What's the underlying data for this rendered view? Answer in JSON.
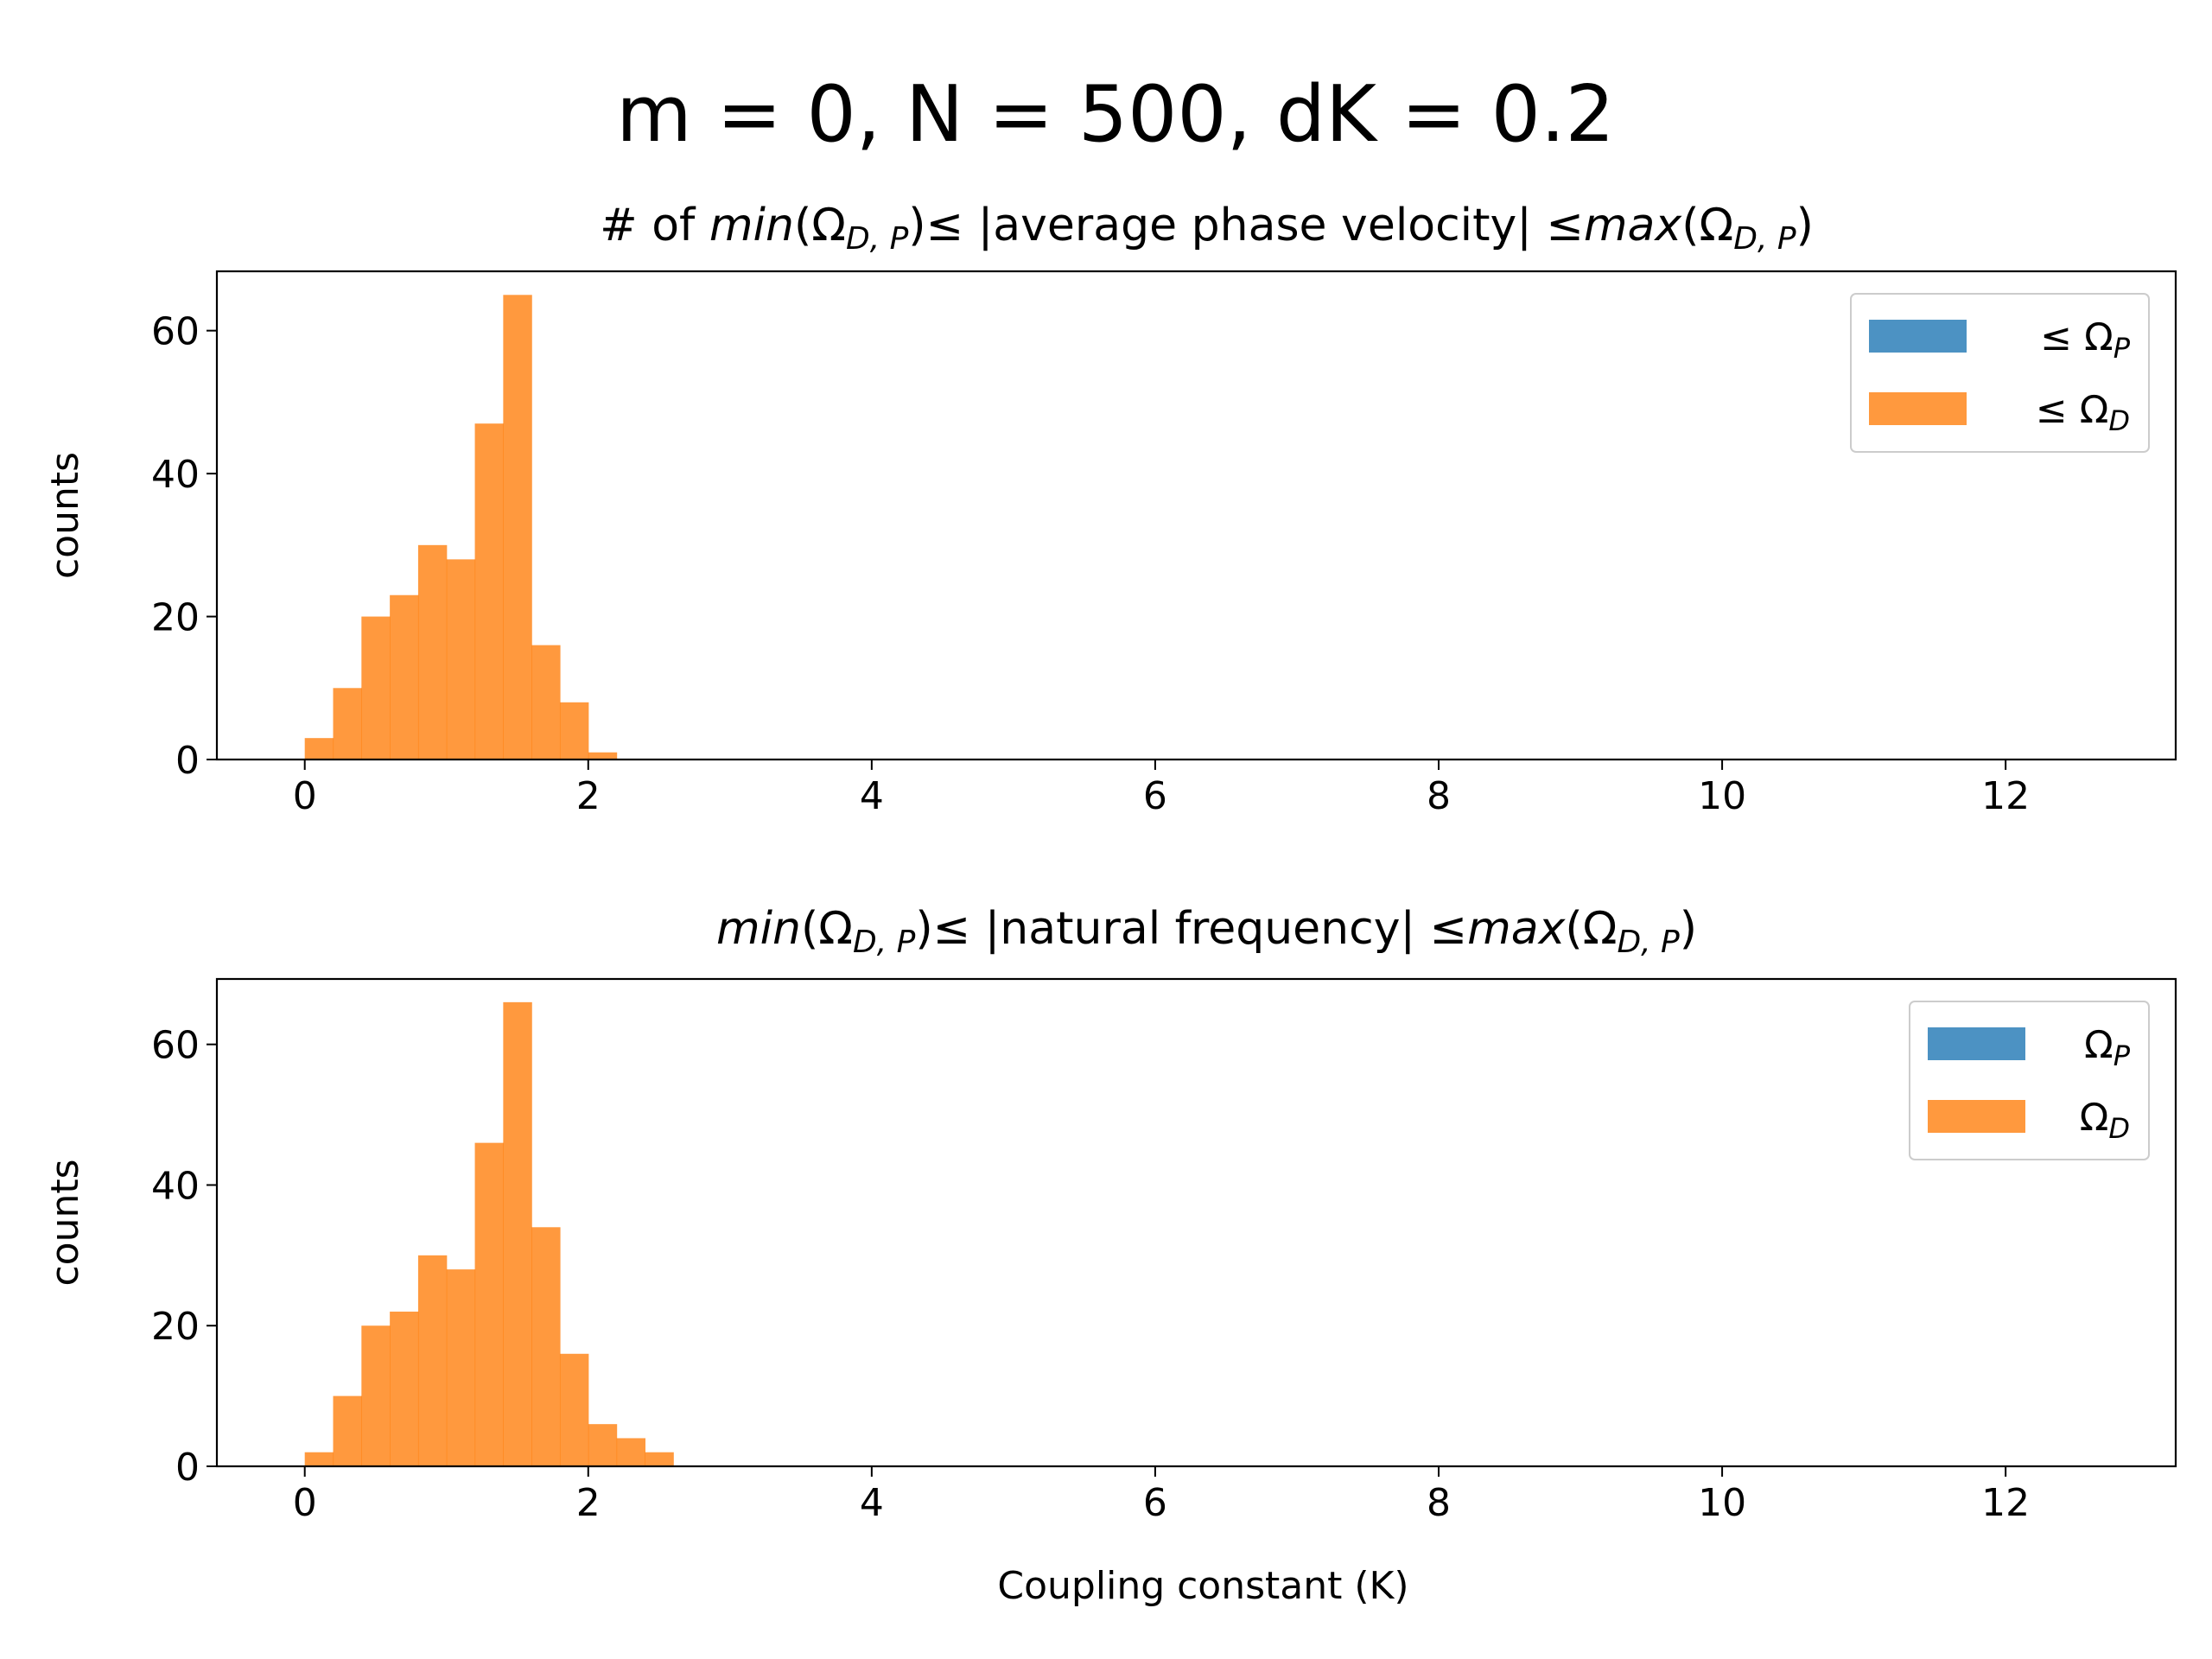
{
  "figure": {
    "suptitle": "m = 0, N = 500, dK = 0.2"
  },
  "colors": {
    "series_p": "#1f77b4",
    "series_d": "#ff7f0e"
  },
  "chart_data": [
    {
      "type": "bar",
      "title": "# of min(Ω_{D,P}) ≤ |average phase velocity| ≤ max(Ω_{D,P})",
      "title_parts": {
        "prefix": "# of ",
        "min_fn": "min",
        "omega": "Ω",
        "sub": "D, P",
        "le1": "≤",
        "middle": "|average phase velocity|",
        "le2": "≤",
        "max_fn": "max"
      },
      "xlabel": "",
      "ylabel": "counts",
      "xlim": [
        -0.62,
        13.2
      ],
      "ylim": [
        0,
        68.3
      ],
      "xticks": [
        0,
        2,
        4,
        6,
        8,
        10,
        12
      ],
      "yticks": [
        0,
        20,
        40,
        60
      ],
      "bin_width": 0.2,
      "bin_start": 0.0,
      "legend_position": "upper right",
      "series": [
        {
          "name": "≤ Ω_P",
          "symbol": "Ω",
          "sub": "P",
          "prefix": "≤",
          "color": "#1f77b4",
          "values": []
        },
        {
          "name": "≤ Ω_D",
          "symbol": "Ω",
          "sub": "D",
          "prefix": "≤",
          "color": "#ff7f0e",
          "values": [
            3,
            10,
            20,
            23,
            30,
            28,
            47,
            65,
            16,
            8,
            1
          ]
        }
      ]
    },
    {
      "type": "bar",
      "title": "min(Ω_{D,P}) ≤ |natural frequency| ≤ max(Ω_{D,P})",
      "title_parts": {
        "prefix": "",
        "min_fn": "min",
        "omega": "Ω",
        "sub": "D, P",
        "le1": "≤",
        "middle": "|natural frequency|",
        "le2": "≤",
        "max_fn": "max"
      },
      "xlabel": "Coupling constant (K)",
      "ylabel": "counts",
      "xlim": [
        -0.62,
        13.2
      ],
      "ylim": [
        0,
        69.3
      ],
      "xticks": [
        0,
        2,
        4,
        6,
        8,
        10,
        12
      ],
      "yticks": [
        0,
        20,
        40,
        60
      ],
      "bin_width": 0.2,
      "bin_start": 0.0,
      "legend_position": "upper right",
      "series": [
        {
          "name": "Ω_P",
          "symbol": "Ω",
          "sub": "P",
          "prefix": "",
          "color": "#1f77b4",
          "values": []
        },
        {
          "name": "Ω_D",
          "symbol": "Ω",
          "sub": "D",
          "prefix": "",
          "color": "#ff7f0e",
          "values": [
            2,
            10,
            20,
            22,
            30,
            28,
            46,
            66,
            34,
            16,
            6,
            4,
            2
          ]
        }
      ]
    }
  ]
}
